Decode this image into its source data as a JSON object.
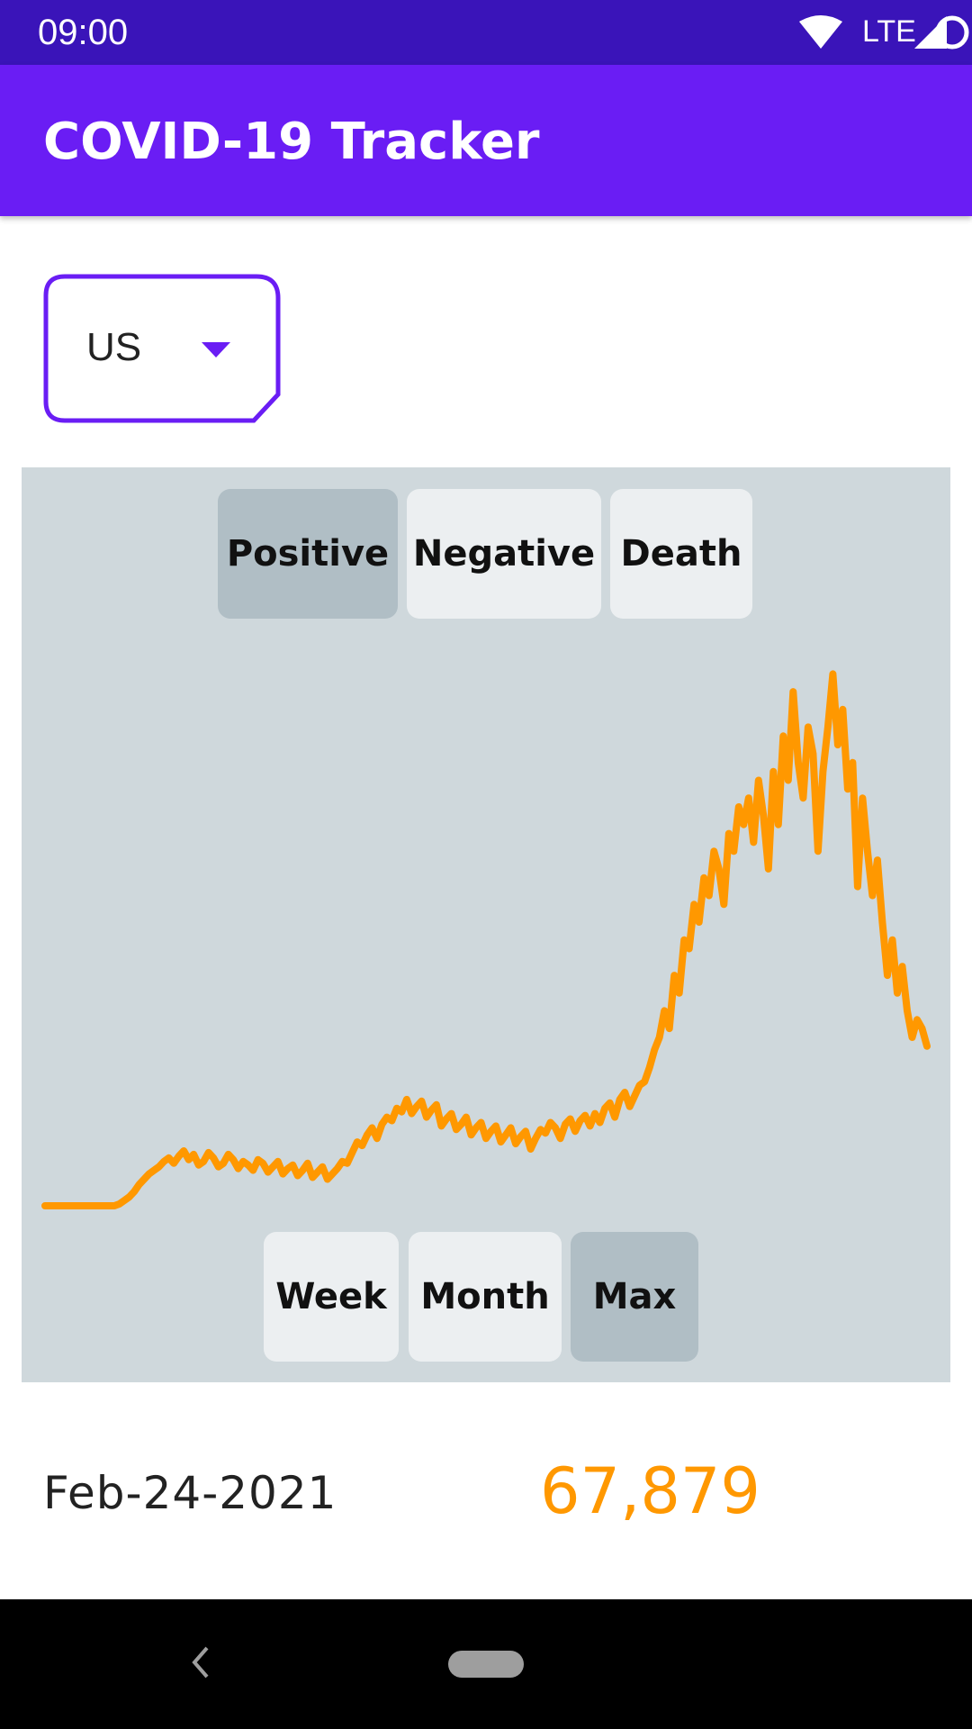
{
  "status_bar": {
    "time": "09:00",
    "network_label": "LTE",
    "icons": [
      "wifi-icon",
      "signal-icon",
      "record-icon"
    ]
  },
  "app_bar": {
    "title": "COVID-19 Tracker"
  },
  "country_select": {
    "selected": "US",
    "icon": "dropdown-caret-icon"
  },
  "metric_tabs": [
    {
      "label": "Positive",
      "active": true
    },
    {
      "label": "Negative",
      "active": false
    },
    {
      "label": "Death",
      "active": false
    }
  ],
  "range_tabs": [
    {
      "label": "Week",
      "active": false
    },
    {
      "label": "Month",
      "active": false
    },
    {
      "label": "Max",
      "active": true
    }
  ],
  "chart_data": {
    "type": "line",
    "series": [
      {
        "color": "#ff9800",
        "values": [
          0,
          0,
          0,
          0,
          0,
          0,
          0,
          0,
          0,
          0,
          0,
          0,
          0,
          0,
          0,
          1,
          3,
          5,
          8,
          12,
          15,
          18,
          20,
          22,
          25,
          27,
          24,
          28,
          31,
          26,
          29,
          23,
          25,
          30,
          27,
          22,
          24,
          29,
          26,
          21,
          25,
          23,
          20,
          26,
          24,
          19,
          22,
          25,
          18,
          21,
          23,
          17,
          20,
          24,
          16,
          19,
          22,
          15,
          18,
          21,
          25,
          24,
          30,
          36,
          34,
          40,
          44,
          38,
          46,
          50,
          48,
          55,
          53,
          60,
          52,
          56,
          59,
          50,
          54,
          57,
          45,
          49,
          52,
          43,
          46,
          50,
          40,
          44,
          47,
          38,
          42,
          45,
          36,
          40,
          44,
          35,
          39,
          42,
          32,
          38,
          43,
          41,
          47,
          44,
          38,
          46,
          49,
          42,
          48,
          51,
          45,
          52,
          47,
          55,
          58,
          50,
          60,
          64,
          56,
          62,
          68,
          70,
          78,
          88,
          95,
          110,
          100,
          130,
          120,
          150,
          145,
          170,
          160,
          185,
          175,
          200,
          190,
          170,
          210,
          200,
          225,
          215,
          230,
          205,
          240,
          220,
          190,
          245,
          215,
          265,
          240,
          290,
          250,
          230,
          270,
          255,
          200,
          245,
          270,
          300,
          260,
          280,
          235,
          250,
          180,
          230,
          200,
          175,
          195,
          160,
          130,
          150,
          120,
          135,
          110,
          95,
          105,
          100,
          90
        ],
        "max_value": 320
      }
    ],
    "selected_point": {
      "date": "Feb-24-2021",
      "value": "67,879"
    },
    "grid": false,
    "ylim": [
      0,
      320
    ]
  },
  "detail": {
    "date": "Feb-24-2021",
    "value": "67,879"
  },
  "nav_bar": {
    "icons": [
      "back-icon",
      "home-pill"
    ]
  }
}
